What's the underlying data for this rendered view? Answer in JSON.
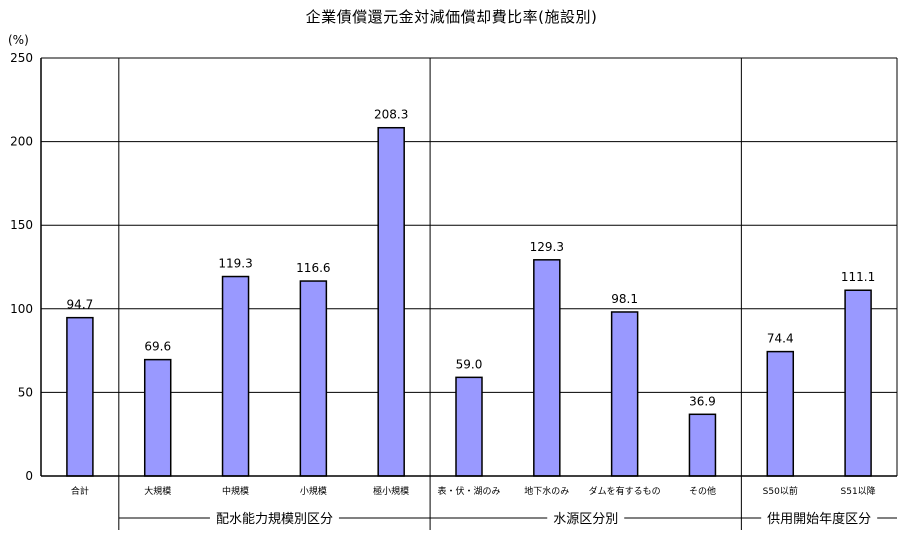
{
  "chart_data": {
    "type": "bar",
    "title": "企業債償還元金対減価償却費比率(施設別)",
    "ylabel": "(%)",
    "ylim": [
      0,
      250
    ],
    "yticks": [
      0,
      50,
      100,
      150,
      200,
      250
    ],
    "grid": true,
    "categories": [
      "合計",
      "大規模",
      "中規模",
      "小規模",
      "極小規模",
      "表・伏・湖のみ",
      "地下水のみ",
      "ダムを有するもの",
      "その他",
      "S50以前",
      "S51以降"
    ],
    "values": [
      94.7,
      69.6,
      119.3,
      116.6,
      208.3,
      59.0,
      129.3,
      98.1,
      36.9,
      74.4,
      111.1
    ],
    "value_labels": [
      "94.7",
      "69.6",
      "119.3",
      "116.6",
      "208.3",
      "59.0",
      "129.3",
      "98.1",
      "36.9",
      "74.4",
      "111.1"
    ],
    "groups": [
      {
        "label": "配水能力規模別区分",
        "start": 1,
        "end": 4
      },
      {
        "label": "水源区分別",
        "start": 5,
        "end": 8
      },
      {
        "label": "供用開始年度区分",
        "start": 9,
        "end": 10
      }
    ],
    "bar_color": "#9999ff",
    "legend": "none"
  }
}
